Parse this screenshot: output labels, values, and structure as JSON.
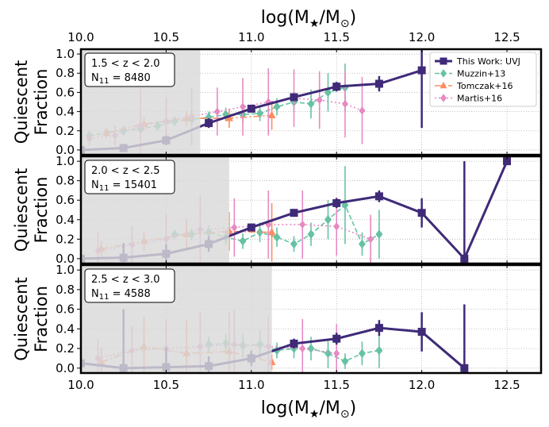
{
  "chart_data": {
    "type": "scatter",
    "xlabel_top": "log(M",
    "xlabel_bottom": "log(M",
    "xlabel_star_sub": "★",
    "xlabel_mid": "/M",
    "xlabel_sun_sub": "⊙",
    "xlabel_close": ")",
    "xlim": [
      10.0,
      12.7
    ],
    "ylim": [
      -0.05,
      1.05
    ],
    "xticks": [
      "10.0",
      "10.5",
      "11.0",
      "11.5",
      "12.0",
      "12.5"
    ],
    "yticks": [
      "0.0",
      "0.2",
      "0.4",
      "0.6",
      "0.8",
      "1.0"
    ],
    "ylabel_line1": "Quiescent",
    "ylabel_line2": "Fraction",
    "legend": {
      "position": "top-right",
      "entries": [
        "This Work: UVJ",
        "Muzzin+13",
        "Tomczak+16",
        "Martis+16"
      ]
    },
    "colors": {
      "this_work": "#3f2a78",
      "muzzin": "#66c2a5",
      "tomczak": "#fc8d62",
      "martis": "#e78ac3",
      "shade": "#d9d9d9"
    },
    "panels": [
      {
        "zlabel": "1.5 < z < 2.0",
        "n_label": "N",
        "n_sub": "11",
        "n_value": " = 8480",
        "mass_limit": 10.7,
        "series": [
          {
            "name": "This Work: UVJ",
            "x": [
              10.0,
              10.25,
              10.5,
              10.75,
              11.0,
              11.25,
              11.5,
              11.75,
              12.0
            ],
            "y": [
              0.0,
              0.02,
              0.1,
              0.28,
              0.43,
              0.55,
              0.66,
              0.69,
              0.83
            ],
            "yerr": [
              0.02,
              0.04,
              0.05,
              0.05,
              0.04,
              0.04,
              0.05,
              0.08,
              0.6
            ]
          },
          {
            "name": "Muzzin+13",
            "x": [
              10.05,
              10.15,
              10.25,
              10.35,
              10.45,
              10.55,
              10.65,
              10.75,
              10.85,
              10.95,
              11.05,
              11.15,
              11.25,
              11.35,
              11.45,
              11.55
            ],
            "y": [
              0.15,
              0.18,
              0.2,
              0.22,
              0.25,
              0.3,
              0.32,
              0.34,
              0.37,
              0.37,
              0.38,
              0.45,
              0.5,
              0.48,
              0.6,
              0.65
            ],
            "yerr": [
              0.05,
              0.05,
              0.05,
              0.05,
              0.05,
              0.05,
              0.06,
              0.06,
              0.07,
              0.08,
              0.08,
              0.09,
              0.1,
              0.15,
              0.2,
              0.25
            ]
          },
          {
            "name": "Tomczak+16",
            "x": [
              10.15,
              10.37,
              10.62,
              10.87,
              11.12
            ],
            "y": [
              0.18,
              0.27,
              0.33,
              0.33,
              0.36
            ],
            "yerr": [
              0.05,
              0.07,
              0.08,
              0.1,
              0.15
            ]
          },
          {
            "name": "Martis+16",
            "x": [
              10.05,
              10.2,
              10.35,
              10.5,
              10.65,
              10.8,
              10.95,
              11.1,
              11.25,
              11.4,
              11.55,
              11.65
            ],
            "y": [
              0.12,
              0.15,
              0.25,
              0.3,
              0.35,
              0.4,
              0.45,
              0.5,
              0.54,
              0.52,
              0.48,
              0.41
            ],
            "yerr": [
              0.08,
              0.1,
              0.4,
              0.25,
              0.3,
              0.25,
              0.3,
              0.35,
              0.3,
              0.3,
              0.35,
              0.35
            ]
          }
        ]
      },
      {
        "zlabel": "2.0 < z < 2.5",
        "n_label": "N",
        "n_sub": "11",
        "n_value": " = 15401",
        "mass_limit": 10.87,
        "series": [
          {
            "name": "This Work: UVJ",
            "x": [
              10.0,
              10.25,
              10.5,
              10.75,
              11.0,
              11.25,
              11.5,
              11.75,
              12.0,
              12.25,
              12.5
            ],
            "y": [
              0.0,
              0.01,
              0.05,
              0.15,
              0.32,
              0.47,
              0.57,
              0.64,
              0.47,
              0.0,
              1.0
            ],
            "yerr": [
              0.02,
              0.15,
              0.1,
              0.08,
              0.04,
              0.04,
              0.05,
              0.06,
              0.15,
              1.0,
              0.03
            ]
          },
          {
            "name": "Muzzin+13",
            "x": [
              10.55,
              10.65,
              10.75,
              10.85,
              10.95,
              11.05,
              11.15,
              11.25,
              11.35,
              11.45,
              11.55,
              11.65,
              11.75
            ],
            "y": [
              0.25,
              0.25,
              0.27,
              0.22,
              0.18,
              0.27,
              0.22,
              0.15,
              0.25,
              0.4,
              0.55,
              0.15,
              0.25
            ],
            "yerr": [
              0.05,
              0.06,
              0.07,
              0.08,
              0.08,
              0.1,
              0.1,
              0.08,
              0.12,
              0.2,
              0.4,
              0.12,
              0.25
            ]
          },
          {
            "name": "Tomczak+16",
            "x": [
              10.12,
              10.37,
              10.62,
              10.87,
              11.12
            ],
            "y": [
              0.1,
              0.18,
              0.25,
              0.28,
              0.27
            ],
            "yerr": [
              0.08,
              0.1,
              0.15,
              0.2,
              0.3
            ]
          },
          {
            "name": "Martis+16",
            "x": [
              10.1,
              10.3,
              10.5,
              10.7,
              10.9,
              11.1,
              11.3,
              11.5,
              11.7
            ],
            "y": [
              0.08,
              0.14,
              0.2,
              0.3,
              0.32,
              0.35,
              0.35,
              0.33,
              0.2
            ],
            "yerr": [
              0.2,
              0.2,
              0.25,
              0.35,
              0.3,
              0.35,
              0.35,
              0.3,
              0.25
            ]
          }
        ]
      },
      {
        "zlabel": "2.5 < z < 3.0",
        "n_label": "N",
        "n_sub": "11",
        "n_value": " = 4588",
        "mass_limit": 11.12,
        "series": [
          {
            "name": "This Work: UVJ",
            "x": [
              10.0,
              10.25,
              10.5,
              10.75,
              11.0,
              11.25,
              11.5,
              11.75,
              12.0,
              12.25
            ],
            "y": [
              0.05,
              0.0,
              0.01,
              0.02,
              0.1,
              0.25,
              0.3,
              0.41,
              0.37,
              0.0
            ],
            "yerr": [
              0.04,
              0.6,
              0.2,
              0.1,
              0.08,
              0.05,
              0.06,
              0.08,
              0.2,
              0.65
            ]
          },
          {
            "name": "Muzzin+13",
            "x": [
              10.75,
              10.85,
              10.95,
              11.05,
              11.15,
              11.25,
              11.35,
              11.45,
              11.55,
              11.65,
              11.75
            ],
            "y": [
              0.24,
              0.25,
              0.23,
              0.24,
              0.18,
              0.2,
              0.2,
              0.15,
              0.07,
              0.15,
              0.18
            ],
            "yerr": [
              0.08,
              0.1,
              0.12,
              0.15,
              0.08,
              0.1,
              0.12,
              0.15,
              0.08,
              0.12,
              0.18
            ]
          },
          {
            "name": "Tomczak+16",
            "x": [
              10.12,
              10.37,
              10.62,
              10.87,
              11.12
            ],
            "y": [
              0.06,
              0.22,
              0.15,
              0.17,
              0.06
            ],
            "yerr": [
              0.15,
              0.3,
              0.35,
              0.4,
              0.08
            ]
          },
          {
            "name": "Martis+16",
            "x": [
              10.1,
              10.3,
              10.5,
              10.7,
              10.9,
              11.1,
              11.3,
              11.5
            ],
            "y": [
              0.1,
              0.18,
              0.2,
              0.22,
              0.24,
              0.22,
              0.2,
              0.15
            ],
            "yerr": [
              0.2,
              0.25,
              0.3,
              0.35,
              0.35,
              0.3,
              0.3,
              0.3
            ]
          }
        ]
      }
    ]
  }
}
